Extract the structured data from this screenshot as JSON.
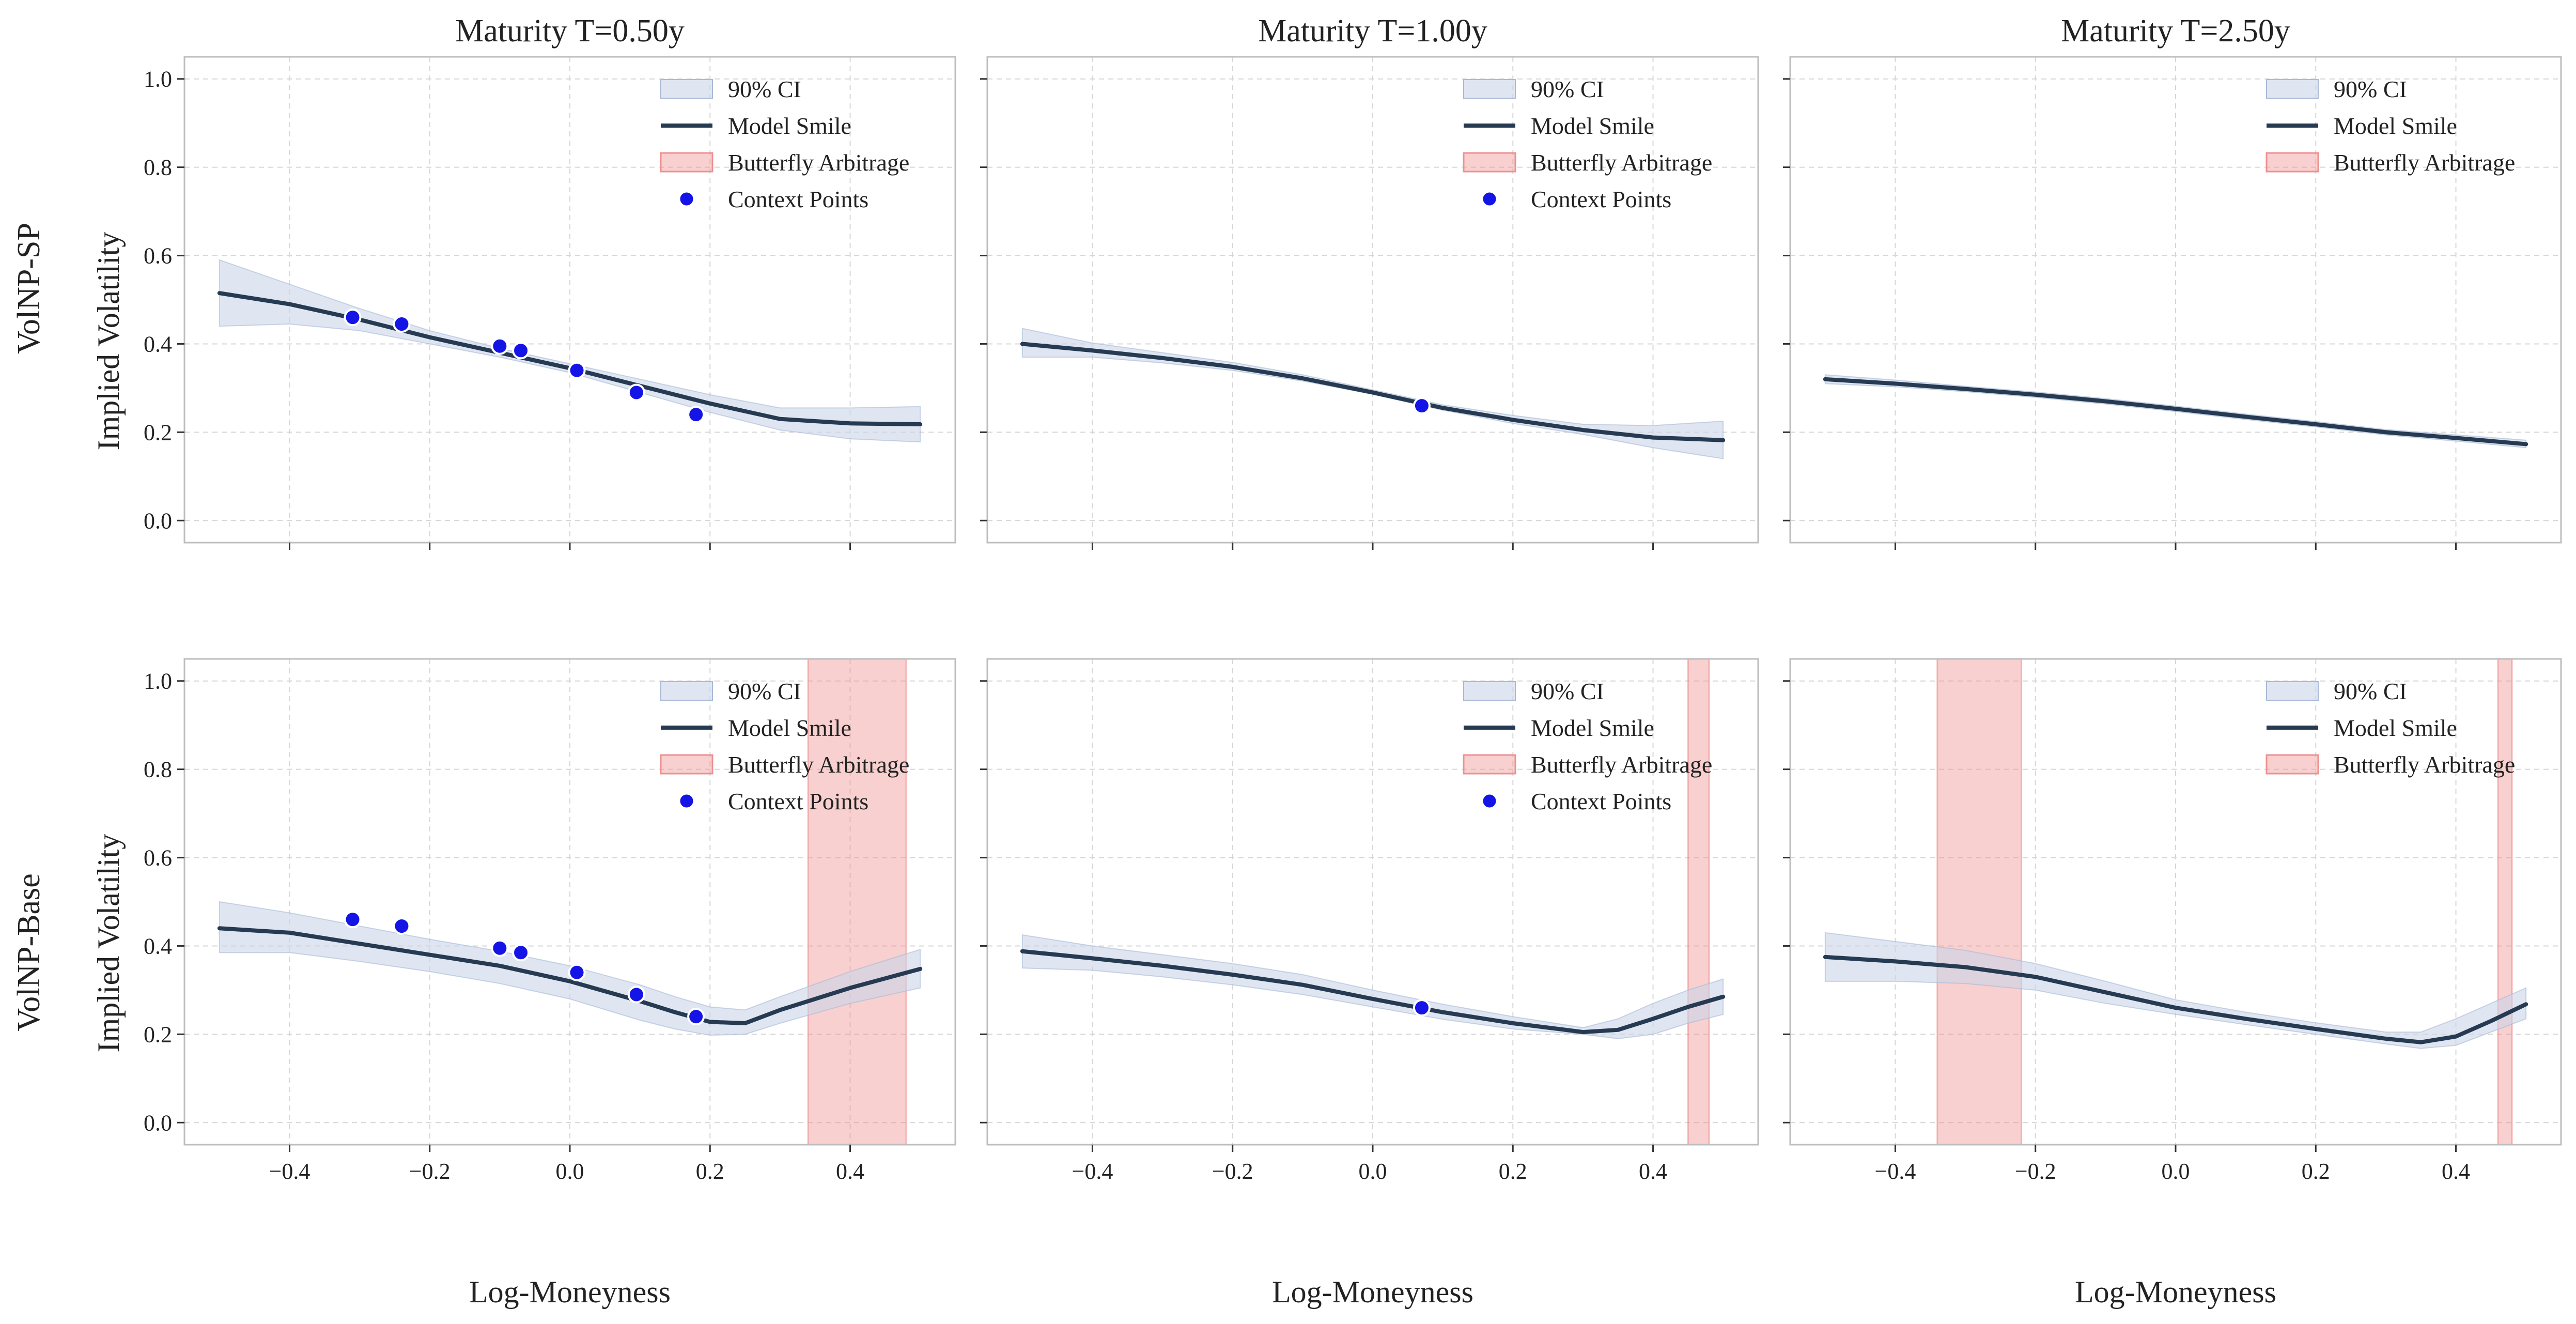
{
  "figure": {
    "xlabel": "Log-Moneyness",
    "ylabel": "Implied Volatility",
    "columns": [
      "Maturity T=0.50y",
      "Maturity T=1.00y",
      "Maturity T=2.50y"
    ],
    "rows": [
      "VolNP-SP",
      "VolNP-Base"
    ],
    "x_ticks": [
      "−0.4",
      "−0.2",
      "0.0",
      "0.2",
      "0.4"
    ],
    "y_ticks": [
      "0.0",
      "0.2",
      "0.4",
      "0.6",
      "0.8",
      "1.0"
    ],
    "legend_labels": {
      "ci": "90% CI",
      "smile": "Model Smile",
      "arb": "Butterfly Arbitrage",
      "ctx": "Context Points"
    },
    "colors": {
      "line": "#263a52",
      "ci_fill": "#c9d5ea",
      "arb_fill": "#ef8f8f",
      "point": "#1414e6",
      "grid": "#d6d6d6",
      "frame": "#bdbdbd"
    }
  },
  "chart_data": [
    {
      "type": "line",
      "row": "VolNP-SP",
      "title": "Maturity T=0.50y",
      "xlabel": "",
      "ylabel": "Implied Volatility",
      "xlim": [
        -0.55,
        0.55
      ],
      "ylim": [
        -0.05,
        1.05
      ],
      "grid": true,
      "legend": "top-right",
      "x": [
        -0.5,
        -0.4,
        -0.3,
        -0.2,
        -0.1,
        0.0,
        0.1,
        0.2,
        0.3,
        0.4,
        0.5
      ],
      "series": [
        {
          "name": "Model Smile",
          "values": [
            0.515,
            0.49,
            0.455,
            0.415,
            0.38,
            0.345,
            0.305,
            0.265,
            0.23,
            0.22,
            0.218
          ],
          "ci_lower": [
            0.44,
            0.445,
            0.43,
            0.4,
            0.37,
            0.335,
            0.29,
            0.245,
            0.205,
            0.185,
            0.178
          ],
          "ci_upper": [
            0.59,
            0.535,
            0.48,
            0.43,
            0.39,
            0.355,
            0.32,
            0.285,
            0.255,
            0.255,
            0.258
          ]
        }
      ],
      "context_points": {
        "x": [
          -0.31,
          -0.24,
          -0.1,
          -0.07,
          0.01,
          0.095,
          0.18
        ],
        "y": [
          0.46,
          0.445,
          0.395,
          0.385,
          0.34,
          0.29,
          0.24
        ]
      },
      "arbitrage_regions": [],
      "legend_entries": [
        "90% CI",
        "Model Smile",
        "Butterfly Arbitrage",
        "Context Points"
      ]
    },
    {
      "type": "line",
      "row": "VolNP-SP",
      "title": "Maturity T=1.00y",
      "xlabel": "",
      "ylabel": "",
      "xlim": [
        -0.55,
        0.55
      ],
      "ylim": [
        -0.05,
        1.05
      ],
      "grid": true,
      "legend": "top-right",
      "x": [
        -0.5,
        -0.4,
        -0.3,
        -0.2,
        -0.1,
        0.0,
        0.1,
        0.2,
        0.3,
        0.4,
        0.5
      ],
      "series": [
        {
          "name": "Model Smile",
          "values": [
            0.4,
            0.385,
            0.368,
            0.348,
            0.322,
            0.29,
            0.255,
            0.228,
            0.205,
            0.188,
            0.182
          ],
          "ci_lower": [
            0.37,
            0.37,
            0.357,
            0.34,
            0.316,
            0.286,
            0.25,
            0.22,
            0.195,
            0.165,
            0.14
          ],
          "ci_upper": [
            0.435,
            0.402,
            0.38,
            0.358,
            0.33,
            0.296,
            0.262,
            0.238,
            0.218,
            0.215,
            0.225
          ]
        }
      ],
      "context_points": {
        "x": [
          0.07
        ],
        "y": [
          0.26
        ]
      },
      "arbitrage_regions": [],
      "legend_entries": [
        "90% CI",
        "Model Smile",
        "Butterfly Arbitrage",
        "Context Points"
      ]
    },
    {
      "type": "line",
      "row": "VolNP-SP",
      "title": "Maturity T=2.50y",
      "xlabel": "",
      "ylabel": "",
      "xlim": [
        -0.55,
        0.55
      ],
      "ylim": [
        -0.05,
        1.05
      ],
      "grid": true,
      "legend": "top-right",
      "x": [
        -0.5,
        -0.4,
        -0.3,
        -0.2,
        -0.1,
        0.0,
        0.1,
        0.2,
        0.3,
        0.4,
        0.5
      ],
      "series": [
        {
          "name": "Model Smile",
          "values": [
            0.32,
            0.31,
            0.298,
            0.285,
            0.27,
            0.253,
            0.235,
            0.218,
            0.2,
            0.187,
            0.173
          ],
          "ci_lower": [
            0.31,
            0.303,
            0.292,
            0.279,
            0.264,
            0.247,
            0.229,
            0.212,
            0.194,
            0.18,
            0.165
          ],
          "ci_upper": [
            0.33,
            0.318,
            0.304,
            0.291,
            0.276,
            0.259,
            0.241,
            0.224,
            0.206,
            0.194,
            0.182
          ]
        }
      ],
      "context_points": {
        "x": [],
        "y": []
      },
      "arbitrage_regions": [],
      "legend_entries": [
        "90% CI",
        "Model Smile",
        "Butterfly Arbitrage"
      ]
    },
    {
      "type": "line",
      "row": "VolNP-Base",
      "title": "",
      "xlabel": "Log-Moneyness",
      "ylabel": "Implied Volatility",
      "xlim": [
        -0.55,
        0.55
      ],
      "ylim": [
        -0.05,
        1.05
      ],
      "grid": true,
      "legend": "top-right",
      "x": [
        -0.5,
        -0.4,
        -0.3,
        -0.2,
        -0.1,
        0.0,
        0.1,
        0.15,
        0.2,
        0.25,
        0.3,
        0.4,
        0.5
      ],
      "series": [
        {
          "name": "Model Smile",
          "values": [
            0.44,
            0.43,
            0.405,
            0.38,
            0.355,
            0.32,
            0.275,
            0.25,
            0.228,
            0.225,
            0.255,
            0.305,
            0.348
          ],
          "ci_lower": [
            0.385,
            0.385,
            0.365,
            0.342,
            0.315,
            0.28,
            0.232,
            0.212,
            0.198,
            0.2,
            0.225,
            0.27,
            0.305
          ],
          "ci_upper": [
            0.5,
            0.475,
            0.445,
            0.415,
            0.388,
            0.355,
            0.312,
            0.285,
            0.262,
            0.255,
            0.285,
            0.342,
            0.392
          ]
        }
      ],
      "context_points": {
        "x": [
          -0.31,
          -0.24,
          -0.1,
          -0.07,
          0.01,
          0.095,
          0.18
        ],
        "y": [
          0.46,
          0.445,
          0.395,
          0.385,
          0.34,
          0.29,
          0.24
        ]
      },
      "arbitrage_regions": [
        [
          0.34,
          0.48
        ]
      ],
      "legend_entries": [
        "90% CI",
        "Model Smile",
        "Butterfly Arbitrage",
        "Context Points"
      ]
    },
    {
      "type": "line",
      "row": "VolNP-Base",
      "title": "",
      "xlabel": "Log-Moneyness",
      "ylabel": "",
      "xlim": [
        -0.55,
        0.55
      ],
      "ylim": [
        -0.05,
        1.05
      ],
      "grid": true,
      "legend": "top-right",
      "x": [
        -0.5,
        -0.4,
        -0.3,
        -0.2,
        -0.1,
        0.0,
        0.1,
        0.2,
        0.3,
        0.35,
        0.4,
        0.45,
        0.5
      ],
      "series": [
        {
          "name": "Model Smile",
          "values": [
            0.388,
            0.372,
            0.355,
            0.335,
            0.312,
            0.28,
            0.25,
            0.225,
            0.205,
            0.21,
            0.235,
            0.262,
            0.285
          ],
          "ci_lower": [
            0.35,
            0.345,
            0.33,
            0.312,
            0.29,
            0.262,
            0.234,
            0.212,
            0.2,
            0.19,
            0.2,
            0.225,
            0.245
          ],
          "ci_upper": [
            0.425,
            0.4,
            0.38,
            0.36,
            0.335,
            0.3,
            0.268,
            0.24,
            0.215,
            0.235,
            0.27,
            0.3,
            0.325
          ]
        }
      ],
      "context_points": {
        "x": [
          0.07
        ],
        "y": [
          0.26
        ]
      },
      "arbitrage_regions": [
        [
          0.45,
          0.48
        ]
      ],
      "legend_entries": [
        "90% CI",
        "Model Smile",
        "Butterfly Arbitrage",
        "Context Points"
      ]
    },
    {
      "type": "line",
      "row": "VolNP-Base",
      "title": "",
      "xlabel": "Log-Moneyness",
      "ylabel": "",
      "xlim": [
        -0.55,
        0.55
      ],
      "ylim": [
        -0.05,
        1.05
      ],
      "grid": true,
      "legend": "top-right",
      "x": [
        -0.5,
        -0.4,
        -0.3,
        -0.2,
        -0.1,
        0.0,
        0.1,
        0.2,
        0.3,
        0.35,
        0.4,
        0.45,
        0.5
      ],
      "series": [
        {
          "name": "Model Smile",
          "values": [
            0.375,
            0.365,
            0.352,
            0.33,
            0.295,
            0.26,
            0.235,
            0.212,
            0.19,
            0.182,
            0.195,
            0.23,
            0.268
          ],
          "ci_lower": [
            0.32,
            0.32,
            0.315,
            0.3,
            0.27,
            0.245,
            0.222,
            0.2,
            0.178,
            0.168,
            0.175,
            0.205,
            0.235
          ],
          "ci_upper": [
            0.43,
            0.41,
            0.39,
            0.36,
            0.32,
            0.278,
            0.25,
            0.226,
            0.205,
            0.205,
            0.235,
            0.27,
            0.305
          ]
        }
      ],
      "context_points": {
        "x": [],
        "y": []
      },
      "arbitrage_regions": [
        [
          -0.34,
          -0.22
        ],
        [
          0.46,
          0.48
        ]
      ],
      "legend_entries": [
        "90% CI",
        "Model Smile",
        "Butterfly Arbitrage"
      ]
    }
  ]
}
